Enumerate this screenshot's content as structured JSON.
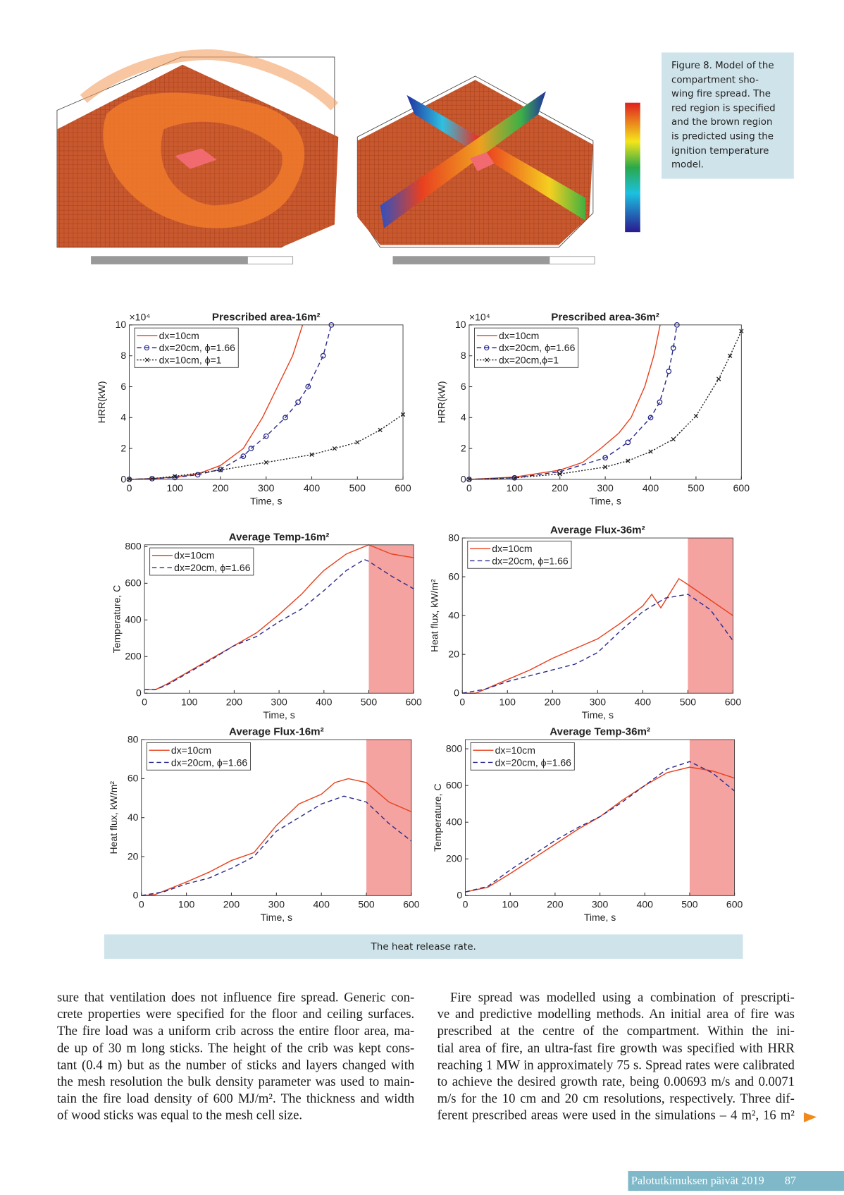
{
  "figure_caption": [
    "Figure 8. Model of the",
    "compartment sho-",
    "wing fire spread. The",
    "red region is specified",
    "and the brown region",
    "is predicted using the",
    "ignition temperature",
    "model."
  ],
  "chart_data": [
    {
      "type": "line",
      "title": "Prescribed area-16m²",
      "xlabel": "Time, s",
      "ylabel": "HRR(kW)",
      "y_multiplier": "×10⁴",
      "xlim": [
        0,
        600
      ],
      "ylim": [
        0,
        10
      ],
      "xticks": [
        0,
        100,
        200,
        300,
        400,
        500,
        600
      ],
      "yticks": [
        0,
        2,
        4,
        6,
        8,
        10
      ],
      "legend": "upper left",
      "series": [
        {
          "name": "dx=10cm",
          "color": "#e8401c",
          "dash": "solid",
          "marker": "none",
          "x": [
            0,
            50,
            100,
            150,
            200,
            250,
            292,
            325,
            358,
            380
          ],
          "values": [
            0,
            0.05,
            0.15,
            0.35,
            0.9,
            2.0,
            4,
            6,
            8,
            10
          ]
        },
        {
          "name": "dx=20cm, ϕ=1.66",
          "color": "#2a2a8c",
          "dash": "dashed",
          "marker": "circle",
          "x": [
            0,
            50,
            100,
            150,
            200,
            250,
            267,
            300,
            342,
            370,
            392,
            425,
            443
          ],
          "values": [
            0,
            0.05,
            0.12,
            0.3,
            0.65,
            1.5,
            2,
            2.8,
            4,
            5,
            6,
            8,
            10
          ]
        },
        {
          "name": "dx=10cm, ϕ=1",
          "color": "#222222",
          "dash": "dotted",
          "marker": "cross",
          "x": [
            0,
            50,
            100,
            200,
            300,
            400,
            450,
            500,
            550,
            600
          ],
          "values": [
            0,
            0.05,
            0.2,
            0.6,
            1.1,
            1.6,
            2.0,
            2.4,
            3.2,
            4.2
          ]
        }
      ]
    },
    {
      "type": "line",
      "title": "Prescribed area-36m²",
      "xlabel": "Time, s",
      "ylabel": "HRR(kW)",
      "y_multiplier": "×10⁴",
      "xlim": [
        0,
        600
      ],
      "ylim": [
        0,
        10
      ],
      "xticks": [
        0,
        100,
        200,
        300,
        400,
        500,
        600
      ],
      "yticks": [
        0,
        2,
        4,
        6,
        8,
        10
      ],
      "legend": "upper left",
      "series": [
        {
          "name": "dx=10cm",
          "color": "#e8401c",
          "dash": "solid",
          "marker": "none",
          "x": [
            0,
            100,
            200,
            250,
            290,
            330,
            357,
            387,
            407,
            421
          ],
          "values": [
            0,
            0.15,
            0.6,
            1.1,
            2,
            3,
            4,
            6,
            8,
            10
          ]
        },
        {
          "name": "dx=20cm, ϕ=1.66",
          "color": "#2a2a8c",
          "dash": "dashed",
          "marker": "circle",
          "x": [
            0,
            100,
            200,
            300,
            350,
            400,
            420,
            440,
            450,
            458
          ],
          "values": [
            0,
            0.1,
            0.5,
            1.4,
            2.4,
            4,
            5,
            7,
            8.5,
            10
          ]
        },
        {
          "name": "dx=20cm,ϕ=1",
          "color": "#222222",
          "dash": "dotted",
          "marker": "cross",
          "x": [
            0,
            100,
            200,
            300,
            350,
            400,
            450,
            500,
            550,
            575,
            600
          ],
          "values": [
            0,
            0.1,
            0.35,
            0.8,
            1.2,
            1.8,
            2.6,
            4.1,
            6.5,
            8,
            9.6
          ]
        }
      ]
    },
    {
      "type": "line",
      "title": "Average Temp-16m²",
      "xlabel": "Time, s",
      "ylabel": "Temperature, C",
      "xlim": [
        0,
        600
      ],
      "ylim": [
        0,
        810
      ],
      "xticks": [
        0,
        100,
        200,
        300,
        400,
        500,
        600
      ],
      "yticks": [
        0,
        200,
        400,
        600,
        800
      ],
      "legend": "upper left",
      "shaded_x": [
        500,
        600
      ],
      "shade_color": "#f4a3a0",
      "series": [
        {
          "name": "dx=10cm",
          "color": "#e8401c",
          "dash": "solid",
          "marker": "none",
          "x": [
            0,
            25,
            50,
            100,
            150,
            200,
            250,
            300,
            350,
            380,
            400,
            450,
            500,
            550,
            600
          ],
          "values": [
            20,
            20,
            50,
            120,
            190,
            260,
            330,
            430,
            540,
            620,
            670,
            760,
            810,
            760,
            740
          ]
        },
        {
          "name": "dx=20cm, ϕ=1.66",
          "color": "#2a2a8c",
          "dash": "dashed",
          "marker": "none",
          "x": [
            0,
            25,
            50,
            100,
            150,
            200,
            250,
            300,
            350,
            400,
            450,
            490,
            500,
            550,
            600
          ],
          "values": [
            20,
            20,
            45,
            115,
            185,
            260,
            310,
            390,
            460,
            560,
            670,
            730,
            720,
            640,
            570
          ]
        }
      ]
    },
    {
      "type": "line",
      "title": "Average Flux-36m²",
      "xlabel": "Time, s",
      "ylabel": "Heat flux, kW/m²",
      "xlim": [
        0,
        600
      ],
      "ylim": [
        0,
        80
      ],
      "xticks": [
        0,
        100,
        200,
        300,
        400,
        500,
        600
      ],
      "yticks": [
        0,
        20,
        40,
        60,
        80
      ],
      "legend": "upper left",
      "shaded_x": [
        500,
        600
      ],
      "shade_color": "#f4a3a0",
      "series": [
        {
          "name": "dx=10cm",
          "color": "#e8401c",
          "dash": "solid",
          "marker": "none",
          "x": [
            0,
            30,
            100,
            150,
            200,
            250,
            300,
            350,
            400,
            420,
            440,
            480,
            500,
            550,
            600
          ],
          "values": [
            0,
            0,
            7,
            12,
            18,
            23,
            28,
            36,
            45,
            51,
            44,
            59,
            56,
            48,
            40
          ]
        },
        {
          "name": "dx=20cm, ϕ=1.66",
          "color": "#2a2a8c",
          "dash": "dashed",
          "marker": "none",
          "x": [
            0,
            50,
            100,
            150,
            200,
            250,
            300,
            350,
            400,
            450,
            500,
            550,
            600
          ],
          "values": [
            0,
            2,
            6,
            9,
            12,
            15,
            21,
            32,
            42,
            49,
            51,
            43,
            27
          ]
        }
      ]
    },
    {
      "type": "line",
      "title": "Average Flux-16m²",
      "xlabel": "Time, s",
      "ylabel": "Heat flux, kW/m²",
      "xlim": [
        0,
        600
      ],
      "ylim": [
        0,
        80
      ],
      "xticks": [
        0,
        100,
        200,
        300,
        400,
        500,
        600
      ],
      "yticks": [
        0,
        20,
        40,
        60,
        80
      ],
      "legend": "upper left",
      "shaded_x": [
        500,
        600
      ],
      "shade_color": "#f4a3a0",
      "series": [
        {
          "name": "dx=10cm",
          "color": "#e8401c",
          "dash": "solid",
          "marker": "none",
          "x": [
            0,
            30,
            100,
            150,
            200,
            250,
            300,
            350,
            400,
            430,
            460,
            500,
            550,
            600
          ],
          "values": [
            0,
            0.5,
            7,
            12,
            18,
            22,
            36,
            47,
            52,
            58,
            60,
            58,
            48,
            43
          ]
        },
        {
          "name": "dx=20cm, ϕ=1.66",
          "color": "#2a2a8c",
          "dash": "dashed",
          "marker": "none",
          "x": [
            0,
            50,
            100,
            150,
            200,
            250,
            300,
            350,
            400,
            450,
            500,
            550,
            600
          ],
          "values": [
            0,
            2,
            6,
            9,
            14,
            20,
            33,
            40,
            47,
            51,
            48,
            37,
            28
          ]
        }
      ]
    },
    {
      "type": "line",
      "title": "Average Temp-36m²",
      "xlabel": "Time, s",
      "ylabel": "Temperature, C",
      "xlim": [
        0,
        600
      ],
      "ylim": [
        0,
        850
      ],
      "xticks": [
        0,
        100,
        200,
        300,
        400,
        500,
        600
      ],
      "yticks": [
        0,
        200,
        400,
        600,
        800
      ],
      "legend": "upper left",
      "shaded_x": [
        500,
        600
      ],
      "shade_color": "#f4a3a0",
      "series": [
        {
          "name": "dx=10cm",
          "color": "#e8401c",
          "dash": "solid",
          "marker": "none",
          "x": [
            0,
            50,
            100,
            150,
            200,
            250,
            300,
            350,
            400,
            450,
            500,
            550,
            600
          ],
          "values": [
            20,
            45,
            120,
            200,
            280,
            360,
            430,
            520,
            600,
            670,
            700,
            680,
            640
          ]
        },
        {
          "name": "dx=20cm, ϕ=1.66",
          "color": "#2a2a8c",
          "dash": "dashed",
          "marker": "none",
          "x": [
            0,
            50,
            100,
            150,
            200,
            250,
            300,
            350,
            400,
            450,
            500,
            550,
            600
          ],
          "values": [
            20,
            50,
            140,
            220,
            300,
            370,
            430,
            510,
            600,
            690,
            730,
            670,
            570
          ]
        }
      ]
    }
  ],
  "caption": "The heat release rate.",
  "body": {
    "left": [
      "sure that ventilation does not influence fire spread. Generic con-",
      "crete properties were specified for the floor and ceiling surfaces.",
      "The fire load was a uniform crib across the entire floor area, ma-",
      "de up of 30 m long sticks. The height of the crib was kept cons-",
      "tant (0.4 m) but as the number of sticks and layers changed with",
      "the mesh resolution the bulk density parameter was used to main-",
      "tain the fire load density of 600 MJ/m². The thickness and width",
      "of wood sticks was equal to the mesh cell size."
    ],
    "right": [
      "Fire spread was modelled using a combination of prescripti-",
      "ve and predictive modelling methods. An initial area of fire was",
      "prescribed at the centre of the compartment. Within the ini-",
      "tial area of fire, an ultra-fast fire growth was specified with HRR",
      "reaching 1 MW in approximately 75 s. Spread rates were calibrated",
      "to achieve the desired growth rate, being 0.00693 m/s and 0.0071",
      "m/s for the 10 cm and 20 cm resolutions, respectively. Three dif-",
      "ferent prescribed areas were used in the simulations – 4 m², 16 m²"
    ]
  },
  "footer": {
    "publication": "Palotutkimuksen päivät 2019",
    "page": "87"
  }
}
